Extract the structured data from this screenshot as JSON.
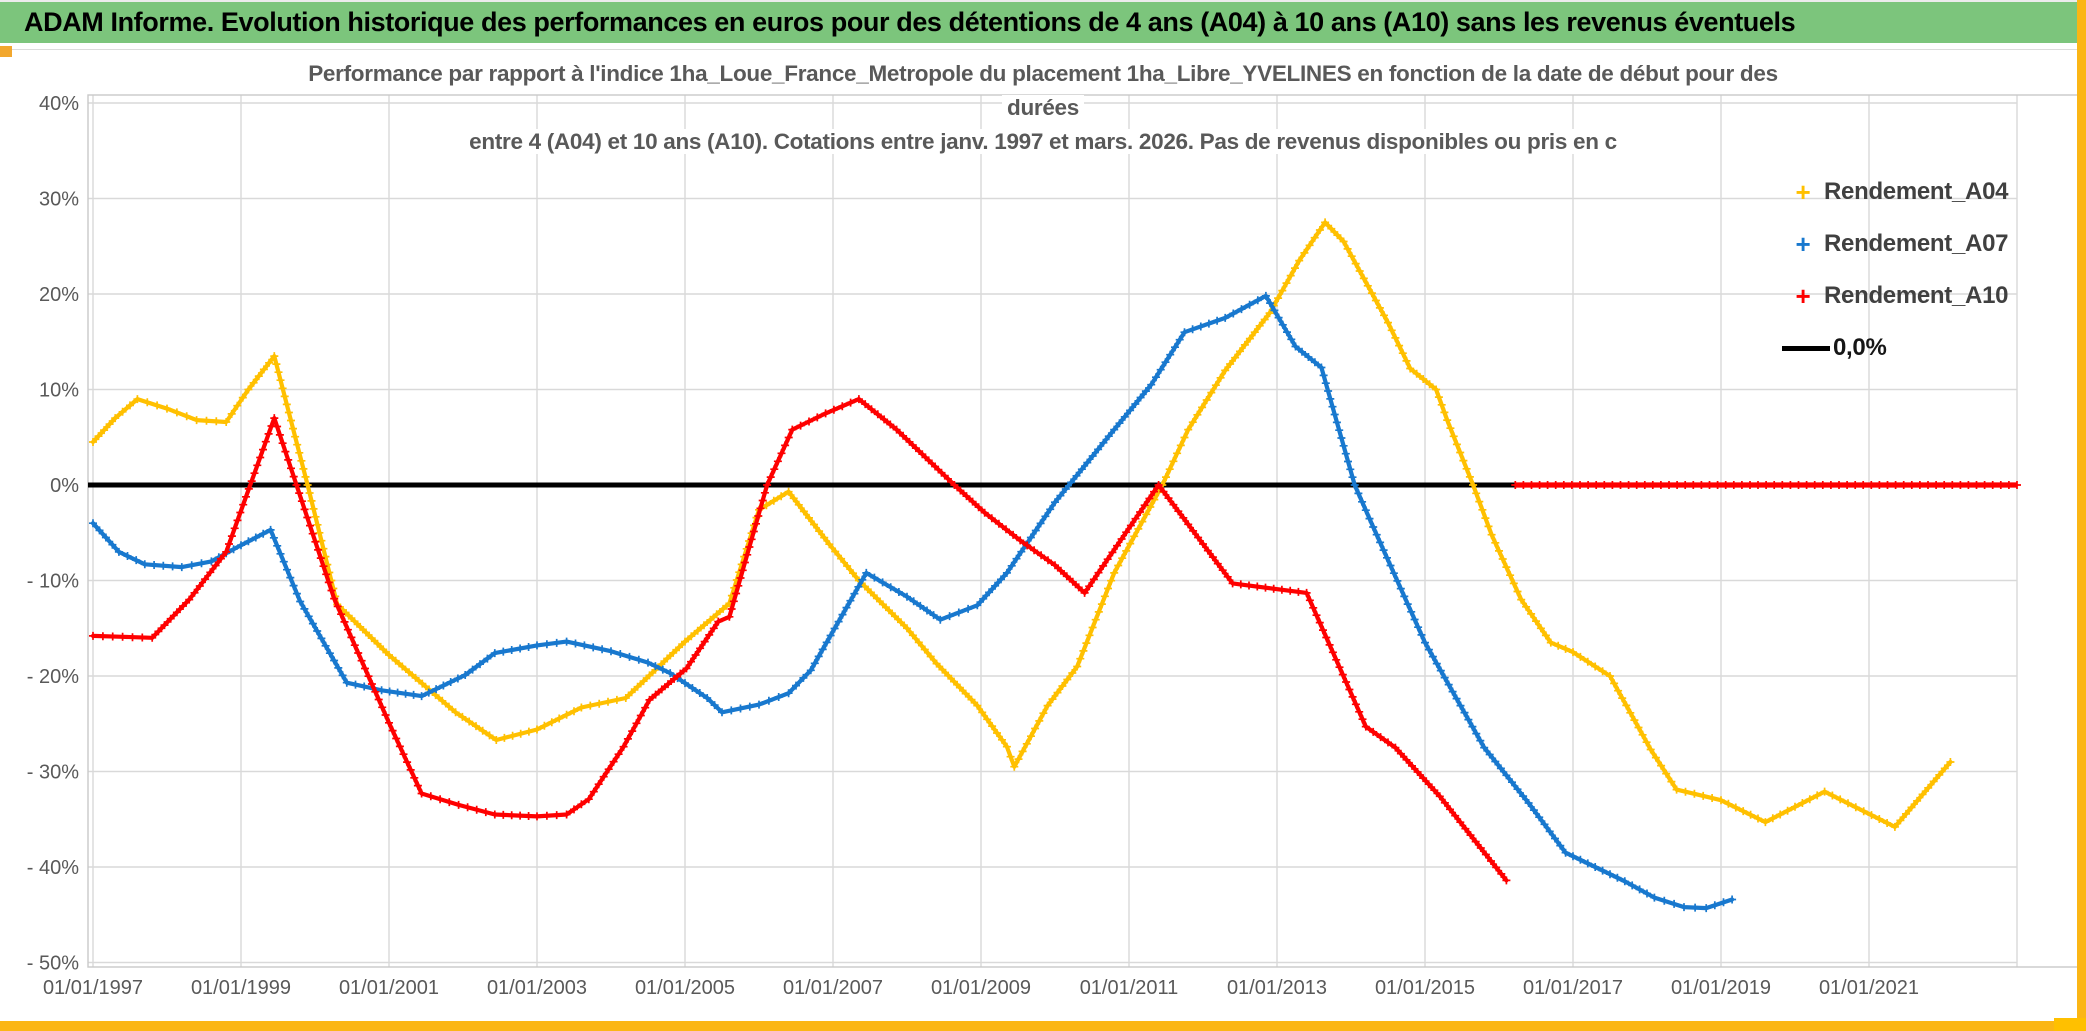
{
  "header": {
    "title": "ADAM Informe. Evolution historique des performances en euros pour des détentions de 4 ans (A04) à 10 ans (A10) sans les revenus éventuels"
  },
  "colors": {
    "header_bg": "#7cc57c",
    "frame_gold": "#fbb615",
    "grid": "#d9d9d9",
    "axis_text": "#595959",
    "title_text": "#595959",
    "legend_text": "#404040",
    "series_a04": "#FFC000",
    "series_a07": "#1878CE",
    "series_a10": "#FE0000",
    "zero_line": "#000000"
  },
  "chart_data": {
    "type": "line",
    "title_lines": [
      "Performance par rapport à l'indice 1ha_Loue_France_Metropole  du placement 1ha_Libre_YVELINES en fonction de la date de début pour des",
      "durées",
      "entre 4 (A04) et 10 ans (A10). Cotations entre janv. 1997 et mars. 2026. Pas de revenus disponibles ou pris en c"
    ],
    "x_axis": {
      "tick_labels": [
        "01/01/1997",
        "01/01/1999",
        "01/01/2001",
        "01/01/2003",
        "01/01/2005",
        "01/01/2007",
        "01/01/2009",
        "01/01/2011",
        "01/01/2013",
        "01/01/2015",
        "01/01/2017",
        "01/01/2019",
        "01/01/2021"
      ],
      "tick_years": [
        1997,
        1999,
        2001,
        2003,
        2005,
        2007,
        2009,
        2011,
        2013,
        2015,
        2017,
        2019,
        2021
      ],
      "gridline_years": [
        1997,
        1999,
        2001,
        2003,
        2005,
        2007,
        2009,
        2011,
        2013,
        2015,
        2017,
        2019,
        2021,
        2023
      ],
      "range_years": [
        1997.0,
        2023.6
      ],
      "grid": true
    },
    "y_axis": {
      "tick_labels": [
        "40%",
        "30%",
        "20%",
        "10%",
        "0%",
        "- 10%",
        "- 20%",
        "- 30%",
        "- 40%",
        "- 50%"
      ],
      "tick_values": [
        40,
        30,
        20,
        10,
        0,
        -10,
        -20,
        -30,
        -40,
        -50
      ],
      "range": [
        -50,
        40
      ],
      "unit": "%",
      "grid": true
    },
    "zero_line": {
      "label": "0,0%",
      "value": 0,
      "color": "#000000"
    },
    "legend_position": "right-top",
    "series": [
      {
        "name": "Rendement_A04",
        "color": "#FFC000",
        "marker": "+",
        "points": [
          [
            1997.0,
            4.5
          ],
          [
            1997.3,
            7.0
          ],
          [
            1997.6,
            9.0
          ],
          [
            1998.0,
            8.0
          ],
          [
            1998.4,
            6.8
          ],
          [
            1998.8,
            6.6
          ],
          [
            1999.1,
            10.0
          ],
          [
            1999.45,
            13.5
          ],
          [
            1999.9,
            0.0
          ],
          [
            2000.3,
            -12.5
          ],
          [
            2001.0,
            -17.8
          ],
          [
            2001.9,
            -23.8
          ],
          [
            2002.45,
            -26.7
          ],
          [
            2003.0,
            -25.6
          ],
          [
            2003.6,
            -23.3
          ],
          [
            2004.2,
            -22.3
          ],
          [
            2005.0,
            -16.4
          ],
          [
            2005.6,
            -12.4
          ],
          [
            2006.0,
            -2.6
          ],
          [
            2006.4,
            -0.7
          ],
          [
            2006.95,
            -6.2
          ],
          [
            2007.35,
            -10.0
          ],
          [
            2008.0,
            -15.0
          ],
          [
            2008.4,
            -18.7
          ],
          [
            2008.95,
            -23.1
          ],
          [
            2009.35,
            -27.4
          ],
          [
            2009.45,
            -29.5
          ],
          [
            2009.9,
            -23.1
          ],
          [
            2010.3,
            -19.0
          ],
          [
            2010.8,
            -9.2
          ],
          [
            2011.45,
            0.0
          ],
          [
            2011.8,
            5.8
          ],
          [
            2012.3,
            12.0
          ],
          [
            2012.9,
            18.0
          ],
          [
            2013.3,
            23.5
          ],
          [
            2013.65,
            27.5
          ],
          [
            2013.9,
            25.5
          ],
          [
            2014.5,
            17.0
          ],
          [
            2014.8,
            12.2
          ],
          [
            2015.15,
            10.0
          ],
          [
            2015.3,
            6.8
          ],
          [
            2015.65,
            0.0
          ],
          [
            2015.9,
            -5.2
          ],
          [
            2016.3,
            -12.0
          ],
          [
            2016.7,
            -16.5
          ],
          [
            2017.0,
            -17.5
          ],
          [
            2017.5,
            -20.0
          ],
          [
            2018.05,
            -27.7
          ],
          [
            2018.4,
            -31.9
          ],
          [
            2019.0,
            -33.0
          ],
          [
            2019.6,
            -35.3
          ],
          [
            2020.4,
            -32.1
          ],
          [
            2021.35,
            -35.8
          ],
          [
            2022.1,
            -29.0
          ]
        ]
      },
      {
        "name": "Rendement_A07",
        "color": "#1878CE",
        "marker": "+",
        "points": [
          [
            1997.0,
            -4.0
          ],
          [
            1997.35,
            -7.0
          ],
          [
            1997.7,
            -8.3
          ],
          [
            1998.2,
            -8.6
          ],
          [
            1998.6,
            -8.0
          ],
          [
            1999.0,
            -6.3
          ],
          [
            1999.4,
            -4.7
          ],
          [
            1999.8,
            -12.2
          ],
          [
            2000.43,
            -20.7
          ],
          [
            2000.9,
            -21.5
          ],
          [
            2001.44,
            -22.1
          ],
          [
            2002.03,
            -19.9
          ],
          [
            2002.43,
            -17.6
          ],
          [
            2003.0,
            -16.8
          ],
          [
            2003.4,
            -16.4
          ],
          [
            2004.0,
            -17.4
          ],
          [
            2004.5,
            -18.6
          ],
          [
            2004.8,
            -19.7
          ],
          [
            2005.3,
            -22.3
          ],
          [
            2005.5,
            -23.8
          ],
          [
            2006.0,
            -23.0
          ],
          [
            2006.4,
            -21.8
          ],
          [
            2006.7,
            -19.4
          ],
          [
            2007.45,
            -9.2
          ],
          [
            2008.0,
            -11.7
          ],
          [
            2008.45,
            -14.1
          ],
          [
            2008.95,
            -12.6
          ],
          [
            2009.35,
            -9.2
          ],
          [
            2010.0,
            -1.8
          ],
          [
            2010.8,
            5.8
          ],
          [
            2011.3,
            10.5
          ],
          [
            2011.75,
            16.0
          ],
          [
            2012.3,
            17.5
          ],
          [
            2012.85,
            19.8
          ],
          [
            2013.25,
            14.5
          ],
          [
            2013.6,
            12.3
          ],
          [
            2014.05,
            0.0
          ],
          [
            2014.3,
            -4.4
          ],
          [
            2015.0,
            -16.5
          ],
          [
            2015.8,
            -27.5
          ],
          [
            2016.4,
            -33.3
          ],
          [
            2016.9,
            -38.5
          ],
          [
            2017.7,
            -41.5
          ],
          [
            2018.1,
            -43.2
          ],
          [
            2018.5,
            -44.2
          ],
          [
            2018.8,
            -44.3
          ],
          [
            2019.15,
            -43.4
          ]
        ]
      },
      {
        "name": "Rendement_A10",
        "color": "#FE0000",
        "marker": "+",
        "points": [
          [
            1997.0,
            -15.8
          ],
          [
            1997.4,
            -15.9
          ],
          [
            1997.8,
            -16.0
          ],
          [
            1998.3,
            -12.0
          ],
          [
            1998.8,
            -7.0
          ],
          [
            1999.45,
            7.0
          ],
          [
            1999.75,
            0.0
          ],
          [
            2000.26,
            -11.9
          ],
          [
            2001.0,
            -24.9
          ],
          [
            2001.44,
            -32.3
          ],
          [
            2001.94,
            -33.5
          ],
          [
            2002.43,
            -34.5
          ],
          [
            2003.0,
            -34.7
          ],
          [
            2003.4,
            -34.5
          ],
          [
            2003.7,
            -32.9
          ],
          [
            2004.17,
            -27.4
          ],
          [
            2004.52,
            -22.5
          ],
          [
            2005.02,
            -19.2
          ],
          [
            2005.45,
            -14.3
          ],
          [
            2005.6,
            -13.8
          ],
          [
            2006.11,
            0.0
          ],
          [
            2006.45,
            5.8
          ],
          [
            2006.9,
            7.5
          ],
          [
            2007.35,
            9.0
          ],
          [
            2007.86,
            5.8
          ],
          [
            2008.64,
            0.0
          ],
          [
            2009.05,
            -2.9
          ],
          [
            2009.53,
            -5.8
          ],
          [
            2010.0,
            -8.4
          ],
          [
            2010.4,
            -11.3
          ],
          [
            2011.4,
            0.0
          ],
          [
            2012.4,
            -10.3
          ],
          [
            2013.4,
            -11.3
          ],
          [
            2014.2,
            -25.3
          ],
          [
            2014.6,
            -27.5
          ],
          [
            2015.2,
            -32.6
          ],
          [
            2016.1,
            -41.4
          ]
        ],
        "zero_extension": [
          2016.22,
          2023.0
        ]
      }
    ]
  }
}
